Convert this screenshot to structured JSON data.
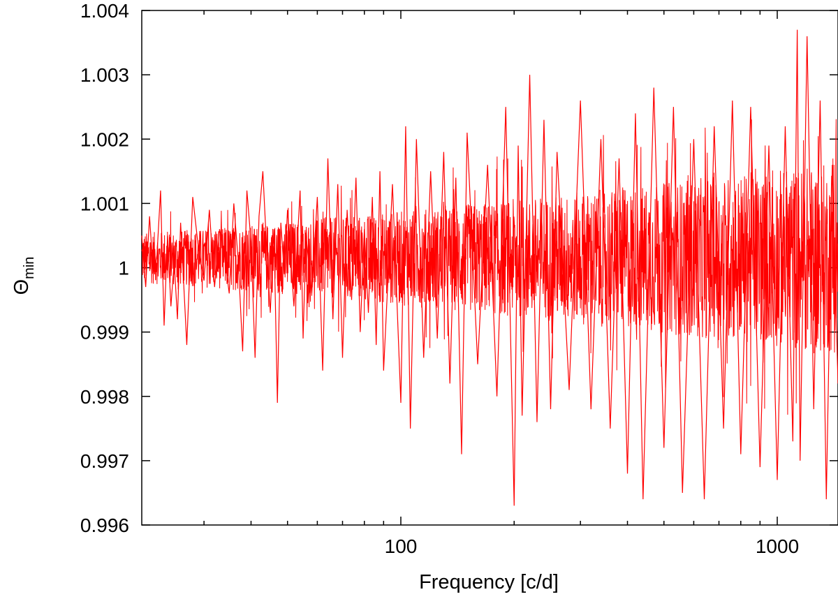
{
  "chart_data": {
    "type": "line",
    "title": "",
    "xlabel": "Frequency [c/d]",
    "ylabel_main": "Θ",
    "ylabel_sub": "min",
    "xscale": "log",
    "xlim": [
      20.5,
      1450
    ],
    "ylim": [
      0.996,
      1.004
    ],
    "x_tick_values": [
      100,
      1000
    ],
    "x_tick_labels": [
      "100",
      "1000"
    ],
    "y_tick_values": [
      0.996,
      0.997,
      0.998,
      0.999,
      1.0,
      1.001,
      1.002,
      1.003,
      1.004
    ],
    "y_tick_labels": [
      "0.996",
      "0.997",
      "0.998",
      "0.999",
      "1",
      "1.001",
      "1.002",
      "1.003",
      "1.004"
    ],
    "grid": false,
    "legend": "none",
    "series": [
      {
        "color": "#ff0000",
        "description_points": "dense periodogram; sampled envelope points (frequency, theta)",
        "x": [
          20.5,
          21,
          21.5,
          22,
          22.5,
          23,
          23.5,
          24,
          24.5,
          25,
          25.5,
          26,
          27,
          28,
          29,
          30,
          31,
          32,
          33,
          34,
          35,
          36,
          37,
          38,
          39,
          40,
          41,
          42,
          43,
          44,
          45,
          46,
          47,
          48,
          49,
          50,
          52,
          54,
          55,
          56,
          58,
          60,
          62,
          64,
          66,
          68,
          70,
          72,
          74,
          76,
          78,
          80,
          82,
          84,
          86,
          88,
          90,
          95,
          100,
          103,
          106,
          110,
          115,
          120,
          125,
          130,
          135,
          140,
          145,
          150,
          160,
          170,
          180,
          190,
          200,
          205,
          210,
          220,
          230,
          240,
          250,
          260,
          280,
          300,
          320,
          340,
          360,
          380,
          400,
          420,
          440,
          470,
          500,
          530,
          560,
          600,
          640,
          680,
          720,
          760,
          800,
          850,
          900,
          950,
          1000,
          1050,
          1100,
          1130,
          1150,
          1200,
          1250,
          1300,
          1350,
          1400,
          1450
        ],
        "y": [
          1.0005,
          0.9997,
          1.0008,
          0.9999,
          1.0002,
          1.0012,
          0.9991,
          1.0005,
          0.9994,
          1.0001,
          0.9992,
          1.0007,
          0.9988,
          1.0011,
          1.0003,
          0.9998,
          1.0009,
          0.9997,
          1.0006,
          1.0002,
          0.9996,
          1.001,
          1.0001,
          0.9987,
          1.0012,
          1.0004,
          0.9986,
          1.0008,
          1.0015,
          1.0003,
          0.9993,
          1.0006,
          0.9979,
          1.0007,
          0.9999,
          1.0009,
          0.9994,
          1.0012,
          0.9989,
          1.0005,
          0.9996,
          1.0011,
          0.9984,
          1.0017,
          0.9992,
          1.0013,
          0.9986,
          1.0009,
          0.9995,
          1.0014,
          0.999,
          1.0006,
          0.9993,
          1.0011,
          0.9988,
          1.0015,
          0.9984,
          1.0013,
          0.9979,
          1.0022,
          0.9975,
          1.002,
          0.9986,
          1.0015,
          0.9989,
          1.0018,
          0.9982,
          1.0014,
          0.9971,
          1.0021,
          0.9985,
          1.0016,
          0.998,
          1.0025,
          0.9963,
          1.0019,
          0.9977,
          1.003,
          0.9976,
          1.0023,
          0.9978,
          1.0018,
          0.9981,
          1.0026,
          0.9978,
          1.002,
          0.9975,
          1.0017,
          0.9968,
          1.0024,
          0.9964,
          1.0028,
          0.9972,
          1.0025,
          0.9965,
          1.002,
          0.9964,
          1.0022,
          0.9975,
          1.0026,
          0.9971,
          1.0025,
          0.9969,
          1.0019,
          0.9967,
          1.0022,
          0.9973,
          1.0037,
          0.997,
          1.0036,
          0.9978,
          1.0026,
          0.9964,
          1.0016,
          0.9982
        ]
      }
    ]
  }
}
